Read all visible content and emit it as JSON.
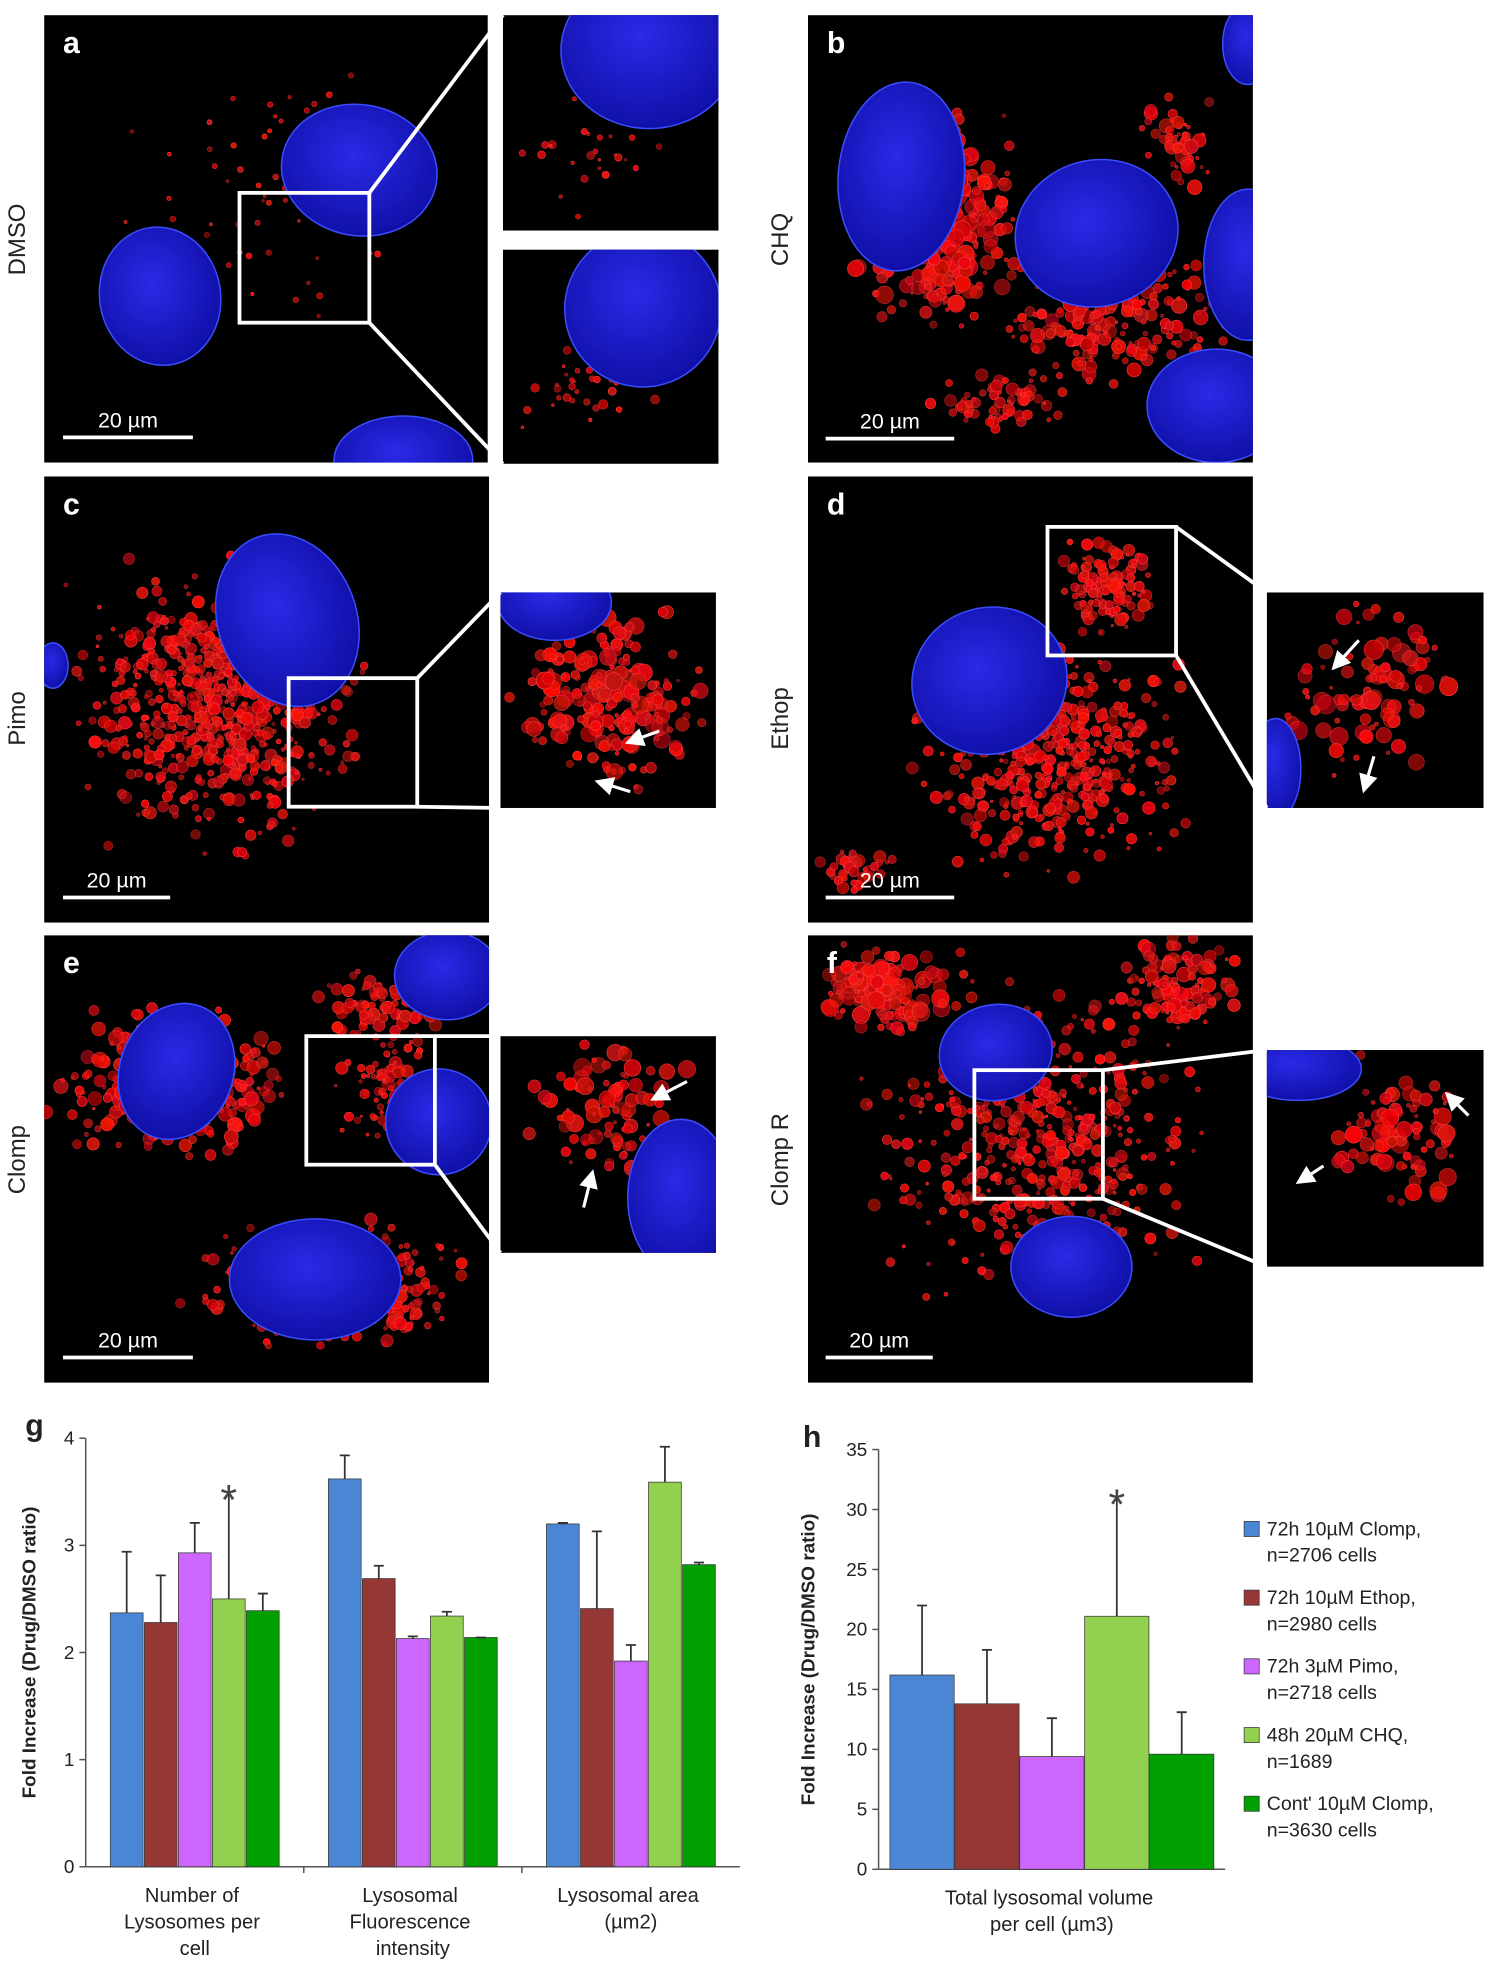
{
  "panels": [
    {
      "label": "a",
      "treatment": "DMSO",
      "scale_bar": "20 µm"
    },
    {
      "label": "b",
      "treatment": "CHQ",
      "scale_bar": "20 µm"
    },
    {
      "label": "c",
      "treatment": "Pimo",
      "scale_bar": "20 µm"
    },
    {
      "label": "d",
      "treatment": "Ethop",
      "scale_bar": "20 µm"
    },
    {
      "label": "e",
      "treatment": "Clomp",
      "scale_bar": "20 µm"
    },
    {
      "label": "f",
      "treatment": "Clomp R",
      "scale_bar": "20 µm"
    }
  ],
  "chart_data": [
    {
      "type": "bar",
      "panel_label": "g",
      "y_label": "Fold Increase (Drug/DMSO ratio)",
      "annotation": "*",
      "categories": [
        "Number of Lysosomes per cell",
        "Lysosomal Fluorescence intensity",
        "Lysosomal area (µm2)"
      ],
      "series": [
        {
          "color": "#4a86d4",
          "values": [
            2.37,
            3.62,
            3.2
          ],
          "errors": [
            0.57,
            0.22,
            0.01
          ]
        },
        {
          "color": "#953735",
          "values": [
            2.28,
            2.69,
            2.41
          ],
          "errors": [
            0.44,
            0.12,
            0.72
          ]
        },
        {
          "color": "#cc66ff",
          "values": [
            2.93,
            2.13,
            1.92
          ],
          "errors": [
            0.28,
            0.02,
            0.15
          ]
        },
        {
          "color": "#92d050",
          "values": [
            2.5,
            2.34,
            3.59
          ],
          "errors": [
            1.0,
            0.04,
            0.33
          ]
        },
        {
          "color": "#00a000",
          "values": [
            2.39,
            2.14,
            2.82
          ],
          "errors": [
            0.16,
            0.0,
            0.02
          ]
        }
      ],
      "ylim": [
        0,
        4
      ],
      "yticks": [
        0,
        1,
        2,
        3,
        4
      ]
    },
    {
      "type": "bar",
      "panel_label": "h",
      "y_label": "Fold Increase (Drug/DMSO ratio)",
      "annotation": "*",
      "categories": [
        "Total lysosomal volume per cell (µm3)"
      ],
      "series": [
        {
          "name": "72h 10µM Clomp, n=2706 cells",
          "color": "#4a86d4",
          "values": [
            16.2
          ],
          "errors": [
            5.8
          ]
        },
        {
          "name": "72h 10µM Ethop, n=2980 cells",
          "color": "#953735",
          "values": [
            13.8
          ],
          "errors": [
            4.5
          ]
        },
        {
          "name": "72h 3µM Pimo, n=2718 cells",
          "color": "#cc66ff",
          "values": [
            9.4
          ],
          "errors": [
            3.2
          ]
        },
        {
          "name": "48h 20µM CHQ, n=1689",
          "color": "#92d050",
          "values": [
            21.1
          ],
          "errors": [
            10.0
          ]
        },
        {
          "name": "Cont' 10µM Clomp, n=3630 cells",
          "color": "#00a000",
          "values": [
            9.6
          ],
          "errors": [
            3.5
          ]
        }
      ],
      "ylim": [
        0,
        35
      ],
      "yticks": [
        0,
        5,
        10,
        15,
        20,
        25,
        30,
        35
      ],
      "legend": "right"
    }
  ]
}
